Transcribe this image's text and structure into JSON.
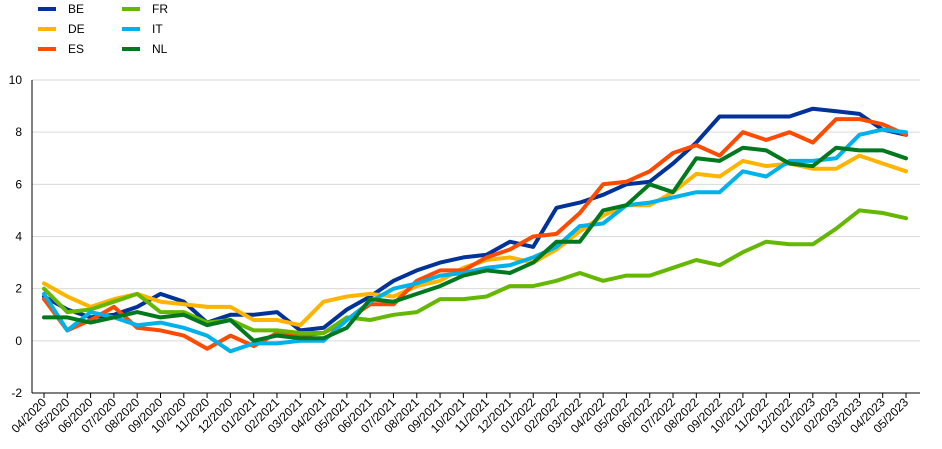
{
  "chart_data": {
    "type": "line",
    "title": "",
    "xlabel": "",
    "ylabel": "",
    "ylim": [
      -2,
      10
    ],
    "yticks": [
      -2,
      0,
      2,
      4,
      6,
      8,
      10
    ],
    "grid": "horizontal",
    "legend_position": "top-left",
    "x": [
      "04/2020",
      "05/2020",
      "06/2020",
      "07/2020",
      "08/2020",
      "09/2020",
      "10/2020",
      "11/2020",
      "12/2020",
      "01/2021",
      "02/2021",
      "03/2021",
      "04/2021",
      "05/2021",
      "06/2021",
      "07/2021",
      "08/2021",
      "09/2021",
      "10/2021",
      "11/2021",
      "12/2021",
      "01/2022",
      "02/2022",
      "03/2022",
      "04/2022",
      "05/2022",
      "06/2022",
      "07/2022",
      "08/2022",
      "09/2022",
      "10/2022",
      "11/2022",
      "12/2022",
      "01/2023",
      "02/2023",
      "03/2023",
      "04/2023",
      "05/2023"
    ],
    "series": [
      {
        "name": "BE",
        "color": "#003299",
        "values": [
          1.7,
          1.2,
          0.9,
          1.0,
          1.3,
          1.8,
          1.5,
          0.7,
          1.0,
          1.0,
          1.1,
          0.4,
          0.5,
          1.2,
          1.7,
          2.3,
          2.7,
          3.0,
          3.2,
          3.3,
          3.8,
          3.6,
          5.1,
          5.3,
          5.6,
          6.0,
          6.1,
          6.8,
          7.6,
          8.6,
          8.6,
          8.6,
          8.6,
          8.9,
          8.8,
          8.7,
          8.1,
          7.9
        ]
      },
      {
        "name": "DE",
        "color": "#FFB400",
        "values": [
          2.2,
          1.7,
          1.3,
          1.6,
          1.8,
          1.5,
          1.4,
          1.3,
          1.3,
          0.8,
          0.8,
          0.6,
          1.5,
          1.7,
          1.8,
          1.7,
          2.1,
          2.3,
          2.8,
          3.1,
          3.2,
          3.0,
          3.5,
          4.2,
          4.8,
          5.2,
          5.2,
          5.7,
          6.4,
          6.3,
          6.9,
          6.7,
          6.8,
          6.6,
          6.6,
          7.1,
          6.8,
          6.5
        ]
      },
      {
        "name": "ES",
        "color": "#FF4B00",
        "values": [
          1.6,
          0.4,
          0.8,
          1.3,
          0.5,
          0.4,
          0.2,
          -0.3,
          0.2,
          -0.2,
          0.3,
          0.2,
          0.3,
          0.8,
          1.4,
          1.4,
          2.3,
          2.7,
          2.7,
          3.2,
          3.5,
          4.0,
          4.1,
          4.9,
          6.0,
          6.1,
          6.5,
          7.2,
          7.5,
          7.1,
          8.0,
          7.7,
          8.0,
          7.6,
          8.5,
          8.5,
          8.3,
          7.9
        ]
      },
      {
        "name": "FR",
        "color": "#65B800",
        "values": [
          2.0,
          1.1,
          1.2,
          1.5,
          1.8,
          1.1,
          1.1,
          0.7,
          0.8,
          0.4,
          0.4,
          0.3,
          0.3,
          0.9,
          0.8,
          1.0,
          1.1,
          1.6,
          1.6,
          1.7,
          2.1,
          2.1,
          2.3,
          2.6,
          2.3,
          2.5,
          2.5,
          2.8,
          3.1,
          2.9,
          3.4,
          3.8,
          3.7,
          3.7,
          4.3,
          5.0,
          4.9,
          4.7
        ]
      },
      {
        "name": "IT",
        "color": "#00B1EA",
        "values": [
          1.8,
          0.4,
          1.1,
          0.9,
          0.6,
          0.7,
          0.5,
          0.2,
          -0.4,
          -0.1,
          -0.1,
          0.0,
          0.0,
          0.8,
          1.5,
          2.0,
          2.2,
          2.5,
          2.6,
          2.8,
          2.9,
          3.2,
          3.6,
          4.4,
          4.5,
          5.2,
          5.3,
          5.5,
          5.7,
          5.7,
          6.5,
          6.3,
          6.9,
          6.9,
          7.0,
          7.9,
          8.1,
          8.0
        ]
      },
      {
        "name": "NL",
        "color": "#00781E",
        "values": [
          0.9,
          0.9,
          0.7,
          0.9,
          1.1,
          0.9,
          1.0,
          0.6,
          0.8,
          0.0,
          0.2,
          0.1,
          0.1,
          0.5,
          1.6,
          1.5,
          1.8,
          2.1,
          2.5,
          2.7,
          2.6,
          3.0,
          3.8,
          3.8,
          5.0,
          5.2,
          6.0,
          5.7,
          7.0,
          6.9,
          7.4,
          7.3,
          6.8,
          6.7,
          7.4,
          7.3,
          7.3,
          7.0
        ]
      }
    ]
  }
}
